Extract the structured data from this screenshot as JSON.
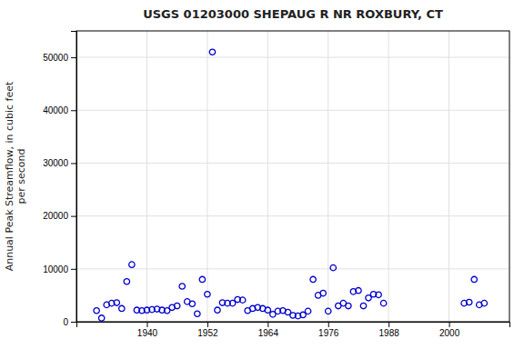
{
  "chart_data": {
    "type": "scatter",
    "title": "USGS 01203000 SHEPAUG R NR ROXBURY, CT",
    "ylabel": "Annual Peak Streamflow, in cubic feet\nper second",
    "x": [
      1930,
      1931,
      1932,
      1933,
      1934,
      1935,
      1936,
      1937,
      1938,
      1939,
      1940,
      1941,
      1942,
      1943,
      1944,
      1945,
      1946,
      1947,
      1948,
      1949,
      1950,
      1951,
      1952,
      1953,
      1954,
      1955,
      1956,
      1957,
      1958,
      1959,
      1960,
      1961,
      1962,
      1963,
      1964,
      1965,
      1966,
      1967,
      1968,
      1969,
      1970,
      1971,
      1972,
      1973,
      1974,
      1975,
      1976,
      1977,
      1978,
      1979,
      1980,
      1981,
      1982,
      1983,
      1984,
      1985,
      1986,
      1987,
      2003,
      2004,
      2005,
      2006,
      2007
    ],
    "values": [
      2100,
      700,
      3200,
      3500,
      3600,
      2500,
      7600,
      10800,
      2200,
      2100,
      2200,
      2300,
      2400,
      2200,
      2100,
      2700,
      3000,
      6700,
      3800,
      3400,
      1500,
      8000,
      5200,
      51000,
      2200,
      3600,
      3500,
      3500,
      4200,
      4100,
      2100,
      2500,
      2700,
      2500,
      2200,
      1400,
      2000,
      2100,
      1800,
      1200,
      1100,
      1300,
      2000,
      8000,
      5000,
      5400,
      2000,
      10200,
      3000,
      3500,
      3000,
      5700,
      5900,
      3000,
      4500,
      5200,
      5100,
      3500,
      3500,
      3700,
      8000,
      3200,
      3500
    ],
    "color": "#0000cc",
    "marker": "circle",
    "xlim": [
      1926,
      2012
    ],
    "ylim": [
      0,
      55000
    ],
    "xticks": [
      1940,
      1952,
      1964,
      1976,
      1988,
      2000
    ],
    "yticks": [
      0,
      10000,
      20000,
      30000,
      40000,
      50000
    ],
    "grid": true
  }
}
